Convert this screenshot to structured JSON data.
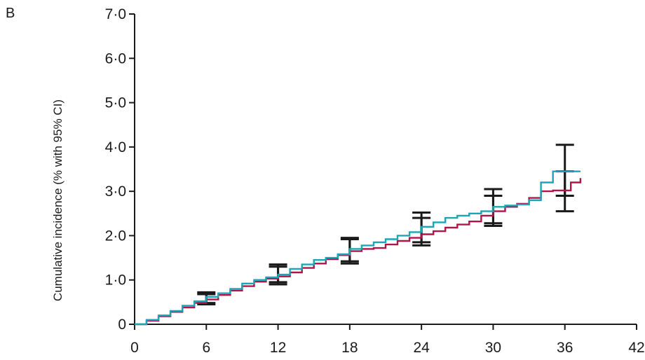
{
  "panel_label": "B",
  "chart_data": {
    "type": "line",
    "xlabel": "",
    "ylabel": "Cumulative incidence (% with 95% CI)",
    "xlim": [
      0,
      42
    ],
    "ylim": [
      0,
      7
    ],
    "x_ticks": [
      0,
      6,
      12,
      18,
      24,
      30,
      36,
      42
    ],
    "x_tick_labels": [
      "0",
      "6",
      "12",
      "18",
      "24",
      "30",
      "36",
      "42"
    ],
    "y_ticks": [
      0,
      1,
      2,
      3,
      4,
      5,
      6,
      7
    ],
    "y_tick_labels": [
      "0",
      "1·0",
      "2·0",
      "3·0",
      "4·0",
      "5·0",
      "6·0",
      "7·0"
    ],
    "grid": false,
    "series": [
      {
        "color": "#b0154a",
        "x": [
          0,
          1,
          2,
          3,
          4,
          5,
          6,
          7,
          8,
          9,
          10,
          11,
          12,
          13,
          14,
          15,
          16,
          17,
          18,
          19,
          20,
          21,
          22,
          23,
          24,
          25,
          26,
          27,
          28,
          29,
          30,
          31,
          32,
          33,
          34,
          35,
          36,
          36.5,
          37.3
        ],
        "y": [
          0,
          0.08,
          0.18,
          0.28,
          0.38,
          0.48,
          0.56,
          0.66,
          0.76,
          0.86,
          0.96,
          1.03,
          1.08,
          1.17,
          1.27,
          1.37,
          1.47,
          1.56,
          1.65,
          1.7,
          1.72,
          1.8,
          1.88,
          1.95,
          2.03,
          2.1,
          2.18,
          2.25,
          2.32,
          2.45,
          2.55,
          2.65,
          2.72,
          2.85,
          3.0,
          3.02,
          3.02,
          3.2,
          3.3
        ],
        "ci": [
          {
            "x": 6,
            "low": 0.45,
            "high": 0.68
          },
          {
            "x": 12,
            "low": 0.9,
            "high": 1.3
          },
          {
            "x": 18,
            "low": 1.37,
            "high": 1.92
          },
          {
            "x": 24,
            "low": 1.85,
            "high": 2.4
          },
          {
            "x": 30,
            "low": 2.22,
            "high": 2.9
          },
          {
            "x": 36,
            "low": 2.9,
            "high": 3.45
          }
        ]
      },
      {
        "color": "#1ba6b8",
        "x": [
          0,
          1,
          2,
          3,
          4,
          5,
          6,
          7,
          8,
          9,
          10,
          11,
          12,
          13,
          14,
          15,
          16,
          17,
          18,
          19,
          20,
          21,
          22,
          23,
          24,
          25,
          26,
          27,
          28,
          29,
          30,
          31,
          32,
          33,
          34,
          35,
          36,
          37.3
        ],
        "y": [
          0,
          0.1,
          0.2,
          0.3,
          0.42,
          0.52,
          0.62,
          0.7,
          0.8,
          0.92,
          1.0,
          1.06,
          1.12,
          1.25,
          1.35,
          1.45,
          1.5,
          1.58,
          1.7,
          1.78,
          1.85,
          1.92,
          2.0,
          2.08,
          2.2,
          2.3,
          2.4,
          2.45,
          2.5,
          2.55,
          2.65,
          2.68,
          2.7,
          2.8,
          3.2,
          3.45,
          3.45,
          3.45
        ],
        "ci": [
          {
            "x": 6,
            "low": 0.48,
            "high": 0.72
          },
          {
            "x": 12,
            "low": 0.95,
            "high": 1.35
          },
          {
            "x": 18,
            "low": 1.42,
            "high": 1.95
          },
          {
            "x": 24,
            "low": 1.78,
            "high": 2.52
          },
          {
            "x": 30,
            "low": 2.28,
            "high": 3.05
          },
          {
            "x": 36,
            "low": 2.55,
            "high": 4.05
          }
        ]
      }
    ]
  }
}
